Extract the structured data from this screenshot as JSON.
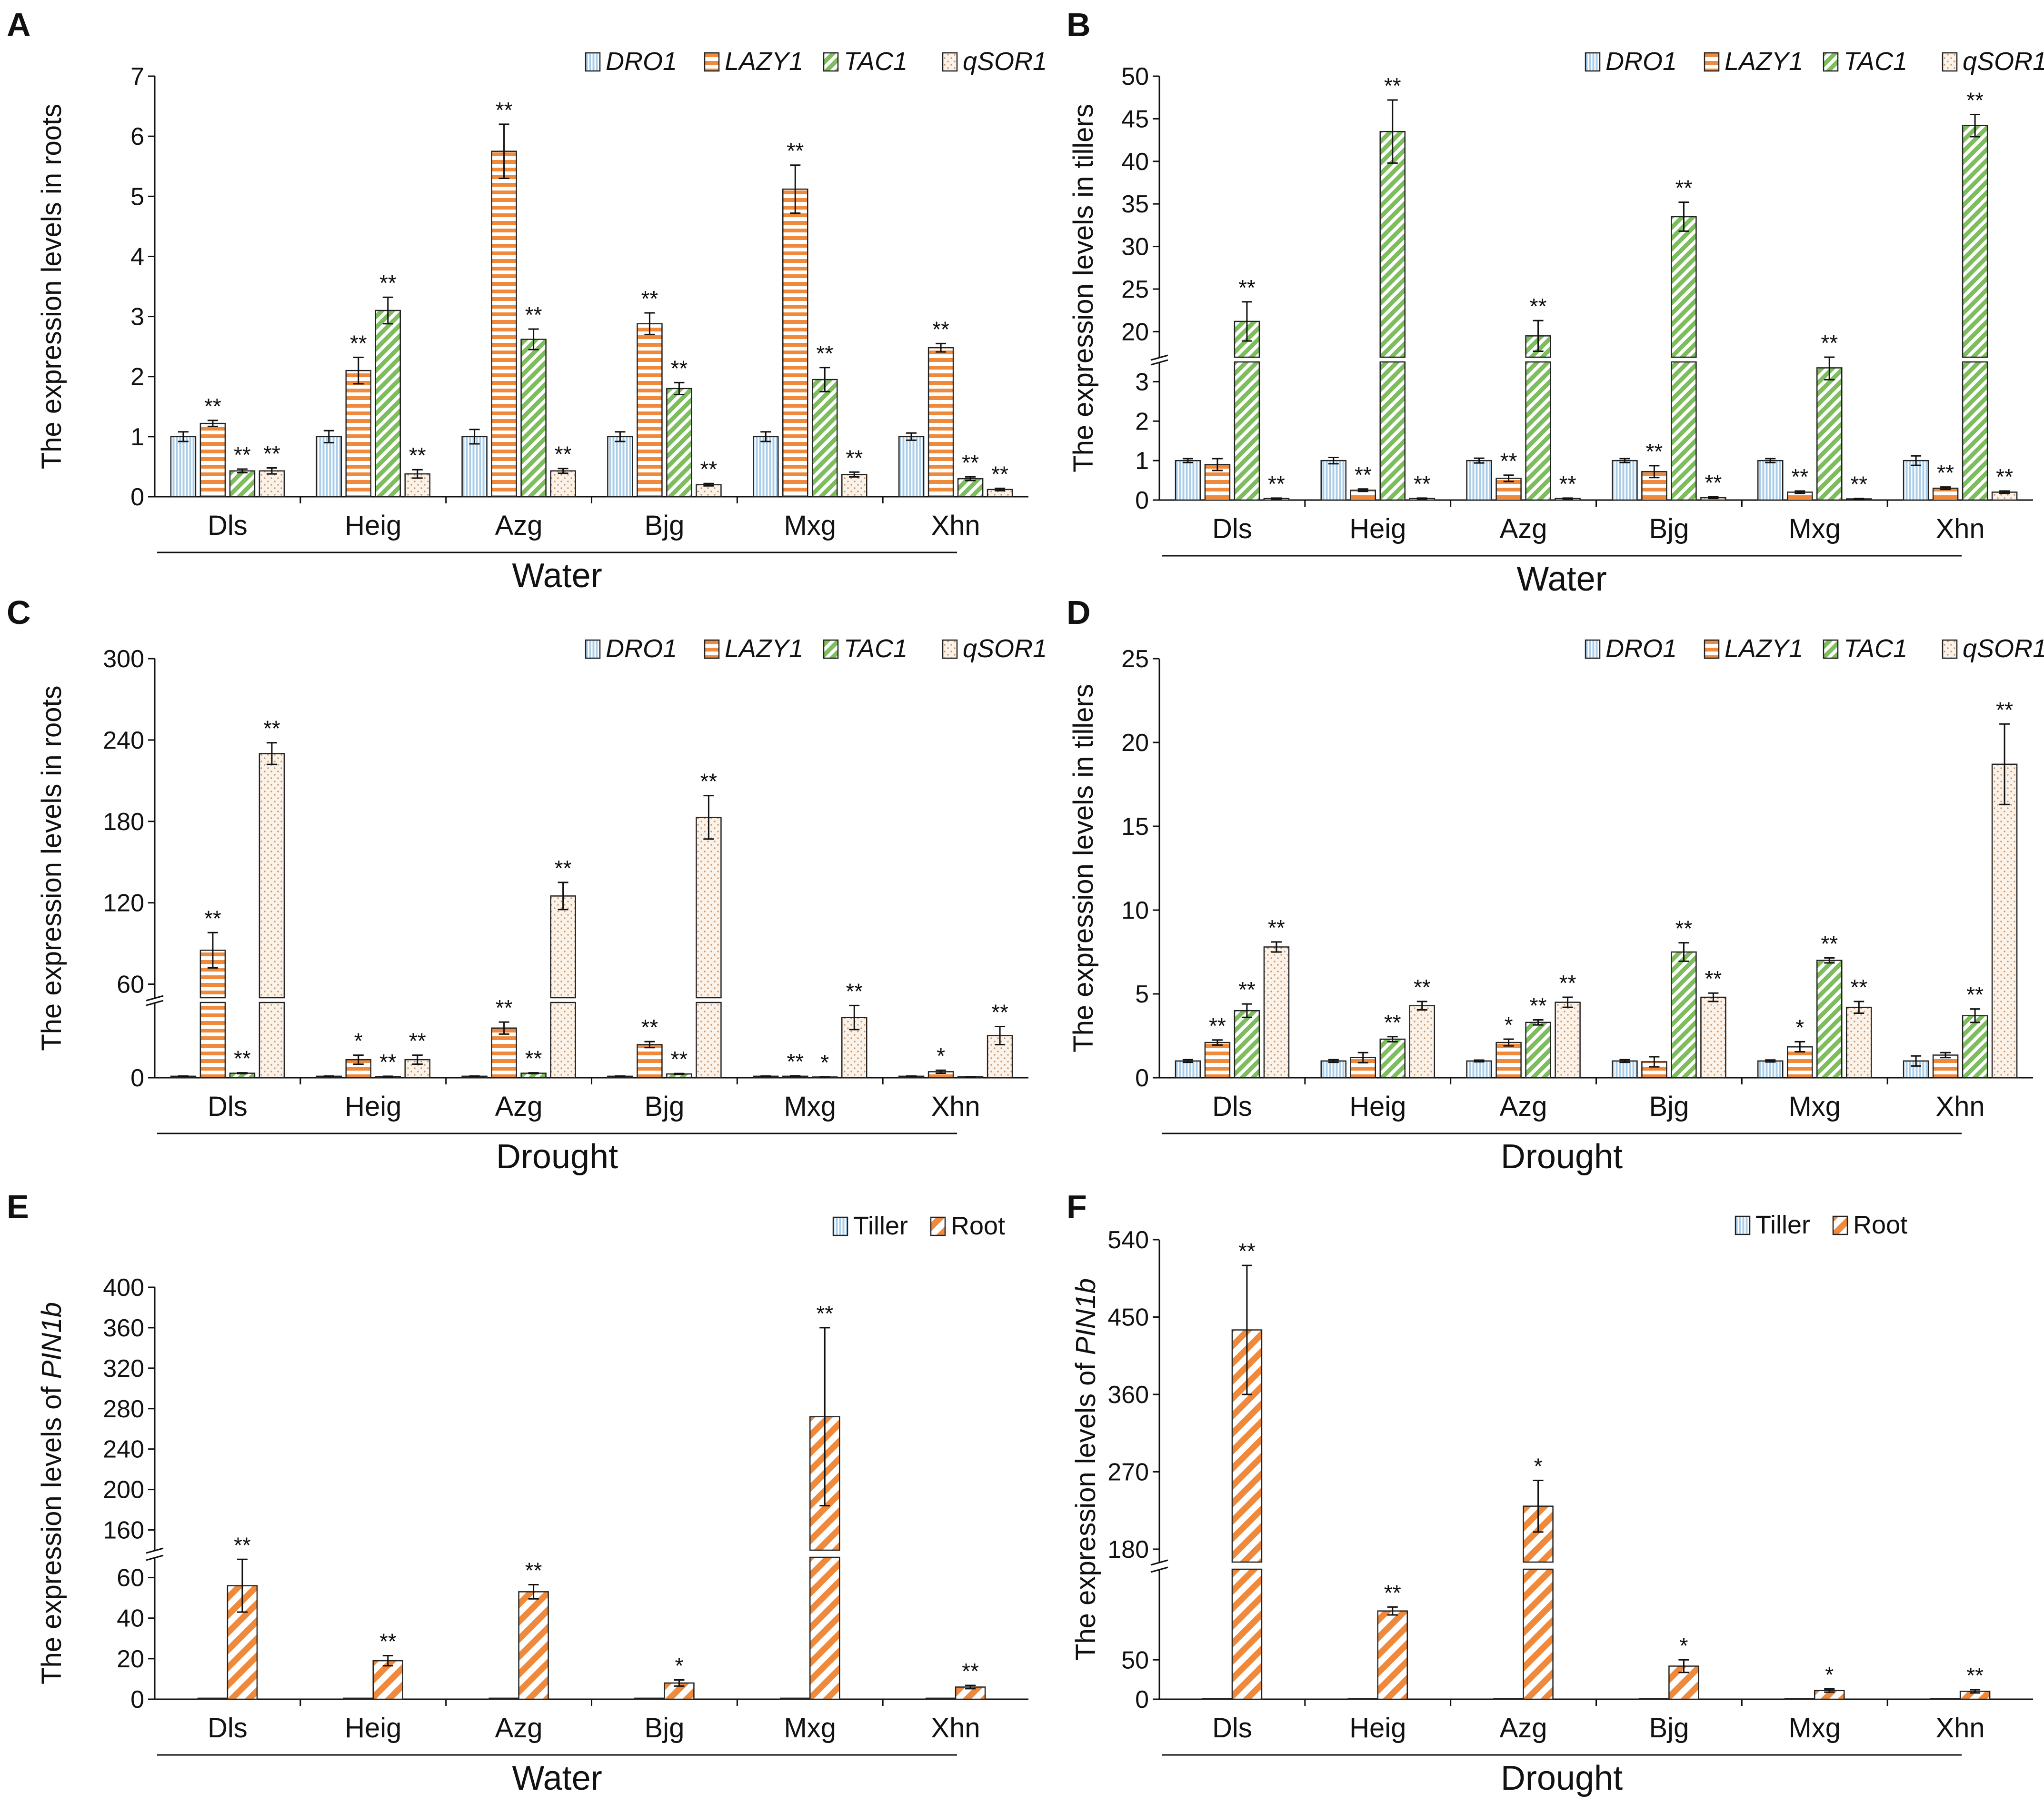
{
  "colors": {
    "DRO1": "#a9cde9",
    "LAZY1": "#ef8a3c",
    "TAC1": "#7dbd5e",
    "qSOR1": "#e9c7a5",
    "Tiller": "#a9cde9",
    "Root": "#ef8a3c",
    "axis": "#111111"
  },
  "chart_data": [
    {
      "panel": "A",
      "type": "bar",
      "ylabel": "The expression levels in roots",
      "group_label": "Water",
      "categories": [
        "Dls",
        "Heig",
        "Azg",
        "Bjg",
        "Mxg",
        "Xhn"
      ],
      "legend": [
        "DRO1",
        "LAZY1",
        "TAC1",
        "qSOR1"
      ],
      "ylim": [
        0,
        7
      ],
      "yticks": [
        "0",
        "1",
        "2",
        "3",
        "4",
        "5",
        "6",
        "7"
      ],
      "series": [
        {
          "name": "DRO1",
          "values": [
            1,
            1,
            1,
            1,
            1,
            1
          ],
          "errors": [
            0.08,
            0.1,
            0.12,
            0.08,
            0.08,
            0.06
          ],
          "stars": [
            "",
            "",
            "",
            "",
            "",
            ""
          ]
        },
        {
          "name": "LAZY1",
          "values": [
            1.22,
            2.1,
            5.75,
            2.88,
            5.12,
            2.48
          ],
          "errors": [
            0.05,
            0.22,
            0.45,
            0.18,
            0.4,
            0.07
          ],
          "stars": [
            "**",
            "**",
            "**",
            "**",
            "**",
            "**"
          ]
        },
        {
          "name": "TAC1",
          "values": [
            0.43,
            3.1,
            2.62,
            1.8,
            1.95,
            0.3
          ],
          "errors": [
            0.03,
            0.22,
            0.17,
            0.1,
            0.2,
            0.03
          ],
          "stars": [
            "**",
            "**",
            "**",
            "**",
            "**",
            "**"
          ]
        },
        {
          "name": "qSOR1",
          "values": [
            0.43,
            0.38,
            0.43,
            0.2,
            0.37,
            0.12
          ],
          "errors": [
            0.05,
            0.07,
            0.04,
            0.02,
            0.04,
            0.02
          ],
          "stars": [
            "**",
            "**",
            "**",
            "**",
            "**",
            "**"
          ]
        }
      ]
    },
    {
      "panel": "B",
      "type": "bar",
      "ylabel": "The expression levels in tillers",
      "group_label": "Water",
      "categories": [
        "Dls",
        "Heig",
        "Azg",
        "Bjg",
        "Mxg",
        "Xhn"
      ],
      "legend": [
        "DRO1",
        "LAZY1",
        "TAC1",
        "qSOR1"
      ],
      "broken_axis": {
        "lower": [
          0,
          3.5
        ],
        "upper": [
          17,
          50
        ]
      },
      "yticks_lower": [
        "0",
        "1",
        "2",
        "3"
      ],
      "yticks_upper": [
        "20",
        "25",
        "30",
        "35",
        "40",
        "45",
        "50"
      ],
      "series": [
        {
          "name": "DRO1",
          "values": [
            1,
            1,
            1,
            1,
            1,
            1
          ],
          "errors": [
            0.05,
            0.08,
            0.06,
            0.05,
            0.05,
            0.12
          ],
          "stars": [
            "",
            "",
            "",
            "",
            "",
            ""
          ]
        },
        {
          "name": "LAZY1",
          "values": [
            0.9,
            0.25,
            0.55,
            0.72,
            0.2,
            0.3
          ],
          "errors": [
            0.15,
            0.03,
            0.08,
            0.15,
            0.03,
            0.03
          ],
          "stars": [
            "",
            "**",
            "**",
            "**",
            "**",
            "**"
          ]
        },
        {
          "name": "TAC1",
          "values": [
            21.2,
            43.5,
            19.5,
            33.5,
            3.35,
            44.2
          ],
          "errors": [
            2.3,
            3.7,
            1.8,
            1.7,
            0.3,
            1.3
          ],
          "stars": [
            "**",
            "**",
            "**",
            "**",
            "**",
            "**"
          ]
        },
        {
          "name": "qSOR1",
          "values": [
            0.04,
            0.04,
            0.04,
            0.06,
            0.03,
            0.2
          ],
          "errors": [
            0.01,
            0.01,
            0.01,
            0.02,
            0.01,
            0.03
          ],
          "stars": [
            "**",
            "**",
            "**",
            "**",
            "**",
            "**"
          ]
        }
      ]
    },
    {
      "panel": "C",
      "type": "bar",
      "ylabel": "The expression levels in roots",
      "group_label": "Drought",
      "categories": [
        "Dls",
        "Heig",
        "Azg",
        "Bjg",
        "Mxg",
        "Xhn"
      ],
      "legend": [
        "DRO1",
        "LAZY1",
        "TAC1",
        "qSOR1"
      ],
      "broken_axis": {
        "lower": [
          0,
          50
        ],
        "upper": [
          50,
          300
        ]
      },
      "yticks_lower": [
        "0"
      ],
      "yticks_upper": [
        "60",
        "120",
        "180",
        "240",
        "300"
      ],
      "series": [
        {
          "name": "DRO1",
          "values": [
            1,
            1,
            1,
            1,
            1,
            1
          ],
          "errors": [
            0.1,
            0.1,
            0.1,
            0.1,
            0.1,
            0.1
          ],
          "stars": [
            "",
            "",
            "",
            "",
            "",
            ""
          ]
        },
        {
          "name": "LAZY1",
          "values": [
            85,
            12,
            33,
            22,
            1,
            4
          ],
          "errors": [
            13,
            3,
            4,
            2,
            0.3,
            1
          ],
          "stars": [
            "**",
            "*",
            "**",
            "**",
            "**",
            "*"
          ]
        },
        {
          "name": "TAC1",
          "values": [
            3,
            0.8,
            3,
            2.5,
            0.5,
            0.6
          ],
          "errors": [
            0.3,
            0.2,
            0.3,
            0.3,
            0.1,
            0.1
          ],
          "stars": [
            "**",
            "**",
            "**",
            "**",
            "*",
            ""
          ]
        },
        {
          "name": "qSOR1",
          "values": [
            230,
            12,
            125,
            183,
            40,
            28
          ],
          "errors": [
            8,
            3,
            10,
            16,
            8,
            6
          ],
          "stars": [
            "**",
            "**",
            "**",
            "**",
            "**",
            "**"
          ]
        }
      ]
    },
    {
      "panel": "D",
      "type": "bar",
      "ylabel": "The expression levels in tillers",
      "group_label": "Drought",
      "categories": [
        "Dls",
        "Heig",
        "Azg",
        "Bjg",
        "Mxg",
        "Xhn"
      ],
      "legend": [
        "DRO1",
        "LAZY1",
        "TAC1",
        "qSOR1"
      ],
      "ylim": [
        0,
        25
      ],
      "yticks": [
        "0",
        "5",
        "10",
        "15",
        "20",
        "25"
      ],
      "series": [
        {
          "name": "DRO1",
          "values": [
            1,
            1,
            1,
            1,
            1,
            1
          ],
          "errors": [
            0.08,
            0.08,
            0.05,
            0.08,
            0.06,
            0.3
          ],
          "stars": [
            "",
            "",
            "",
            "",
            "",
            ""
          ]
        },
        {
          "name": "LAZY1",
          "values": [
            2.1,
            1.2,
            2.1,
            0.95,
            1.85,
            1.35
          ],
          "errors": [
            0.15,
            0.3,
            0.2,
            0.3,
            0.3,
            0.15
          ],
          "stars": [
            "**",
            "",
            "*",
            "",
            "*",
            ""
          ]
        },
        {
          "name": "TAC1",
          "values": [
            4.0,
            2.3,
            3.3,
            7.5,
            7.0,
            3.7
          ],
          "errors": [
            0.4,
            0.15,
            0.15,
            0.55,
            0.15,
            0.4
          ],
          "stars": [
            "**",
            "**",
            "**",
            "**",
            "**",
            "**"
          ]
        },
        {
          "name": "qSOR1",
          "values": [
            7.8,
            4.3,
            4.5,
            4.8,
            4.2,
            18.7
          ],
          "errors": [
            0.3,
            0.25,
            0.3,
            0.25,
            0.35,
            2.4
          ],
          "stars": [
            "**",
            "**",
            "**",
            "**",
            "**",
            "**"
          ]
        }
      ]
    },
    {
      "panel": "E",
      "type": "bar",
      "ylabel": "The expression levels of ",
      "ylabel_gene": "PIN1b",
      "group_label": "Water",
      "categories": [
        "Dls",
        "Heig",
        "Azg",
        "Bjg",
        "Mxg",
        "Xhn"
      ],
      "legend": [
        "Tiller",
        "Root"
      ],
      "broken_axis": {
        "lower": [
          0,
          70
        ],
        "upper": [
          140,
          400
        ]
      },
      "yticks_lower": [
        "0",
        "20",
        "40",
        "60"
      ],
      "yticks_upper": [
        "160",
        "200",
        "240",
        "280",
        "320",
        "360",
        "400"
      ],
      "series": [
        {
          "name": "Tiller",
          "values": [
            0.5,
            0.5,
            0.5,
            0.5,
            0.5,
            0.5
          ],
          "errors": [
            0,
            0,
            0,
            0,
            0,
            0
          ],
          "stars": [
            "",
            "",
            "",
            "",
            "",
            ""
          ]
        },
        {
          "name": "Root",
          "values": [
            56,
            19,
            53,
            8,
            272,
            6
          ],
          "errors": [
            13,
            2.5,
            3.5,
            1.5,
            88,
            0.8
          ],
          "stars": [
            "**",
            "**",
            "**",
            "*",
            "**",
            "**"
          ]
        }
      ]
    },
    {
      "panel": "F",
      "type": "bar",
      "ylabel": "The expression levels of ",
      "ylabel_gene": "PIN1b",
      "group_label": "Drought",
      "categories": [
        "Dls",
        "Heig",
        "Azg",
        "Bjg",
        "Mxg",
        "Xhn"
      ],
      "legend": [
        "Tiller",
        "Root"
      ],
      "broken_axis": {
        "lower": [
          0,
          165
        ],
        "upper": [
          165,
          540
        ]
      },
      "yticks_lower": [
        "0",
        "50"
      ],
      "yticks_upper": [
        "180",
        "270",
        "360",
        "450",
        "540"
      ],
      "series": [
        {
          "name": "Tiller",
          "values": [
            0.5,
            0.5,
            0.5,
            0.5,
            0.5,
            0.5
          ],
          "errors": [
            0,
            0,
            0,
            0,
            0,
            0
          ],
          "stars": [
            "",
            "",
            "",
            "",
            "",
            ""
          ]
        },
        {
          "name": "Root",
          "values": [
            435,
            112,
            230,
            42,
            11,
            10
          ],
          "errors": [
            75,
            5,
            30,
            8,
            2,
            2
          ],
          "stars": [
            "**",
            "**",
            "*",
            "*",
            "*",
            "**"
          ]
        }
      ]
    }
  ]
}
